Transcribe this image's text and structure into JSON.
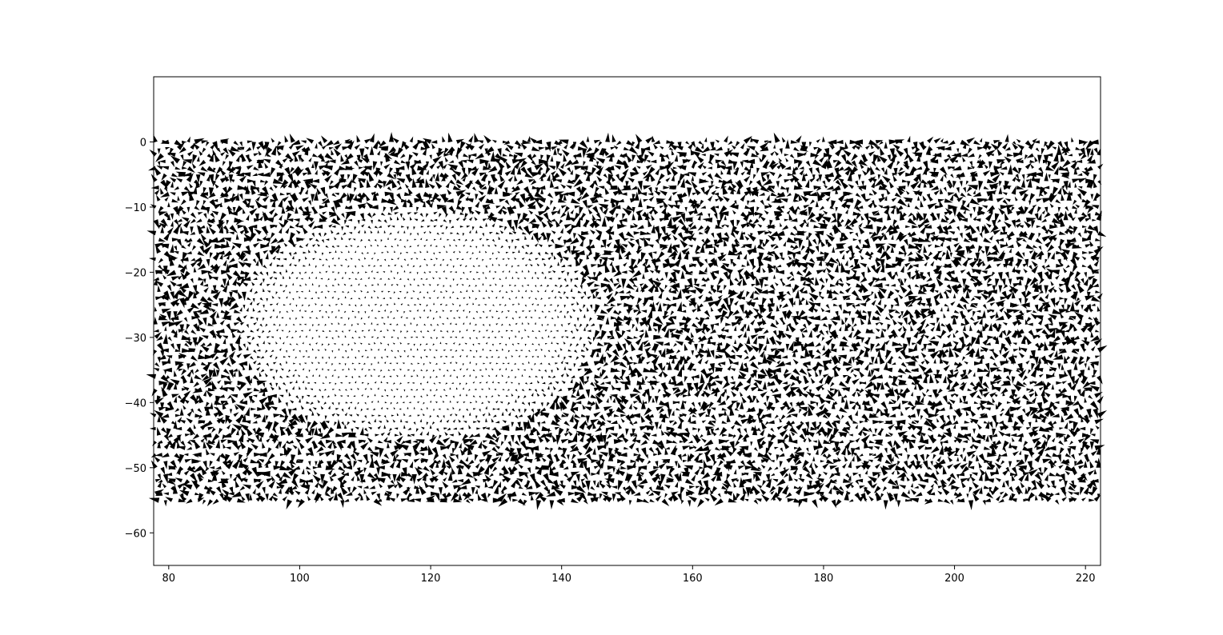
{
  "chart_data": {
    "type": "quiver",
    "title": "",
    "xlabel": "",
    "ylabel": "",
    "xlim": [
      77.7,
      222.3
    ],
    "ylim": [
      -65,
      10
    ],
    "grid": false,
    "legend": "none",
    "x_ticks": [
      80,
      100,
      120,
      140,
      160,
      180,
      200,
      220
    ],
    "y_ticks": [
      0,
      -10,
      -20,
      -30,
      -40,
      -50,
      -60
    ],
    "x_tick_labels": [
      "80",
      "100",
      "120",
      "140",
      "160",
      "180",
      "200",
      "220"
    ],
    "y_tick_labels": [
      "0",
      "−10",
      "−20",
      "−30",
      "−40",
      "−50",
      "−60"
    ],
    "arrow_field": {
      "x_range": [
        78,
        222
      ],
      "y_range": [
        -55,
        0
      ],
      "grid_spacing": 1,
      "row_offset": 0.5,
      "calm_region": {
        "description": "near-zero vectors",
        "approx_center": [
          118,
          -28
        ],
        "x_span": [
          97,
          152
        ],
        "y_span": [
          -45,
          -10
        ]
      },
      "arrow_color": "#000000",
      "noise_seed": 7
    }
  },
  "colors": {
    "axes": "#000000",
    "background": "#ffffff",
    "arrows": "#000000"
  }
}
